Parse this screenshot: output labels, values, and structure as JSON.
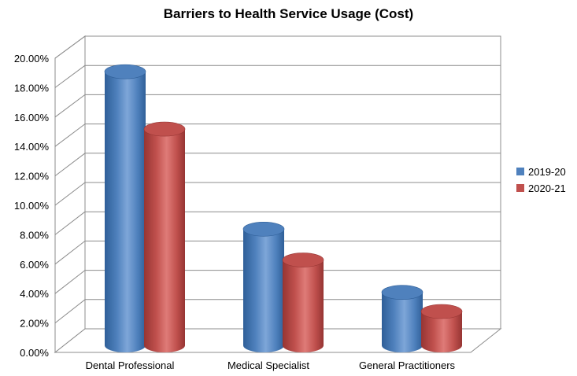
{
  "chart_data": {
    "type": "bar",
    "title": "Barriers to Health Service Usage (Cost)",
    "categories": [
      "Dental Professional",
      "Medical Specialist",
      "General Practitioners"
    ],
    "series": [
      {
        "name": "2019-20",
        "values": [
          18.6,
          7.9,
          3.6
        ],
        "color": "#4f81bd"
      },
      {
        "name": "2020-21",
        "values": [
          14.7,
          5.8,
          2.3
        ],
        "color": "#c0504d"
      }
    ],
    "y_ticks": [
      "0.00%",
      "2.00%",
      "4.00%",
      "6.00%",
      "8.00%",
      "10.00%",
      "12.00%",
      "14.00%",
      "16.00%",
      "18.00%",
      "20.00%"
    ],
    "ylim": [
      0,
      20
    ],
    "grid": true,
    "legend_position": "right",
    "style": "3d-cylinder"
  }
}
